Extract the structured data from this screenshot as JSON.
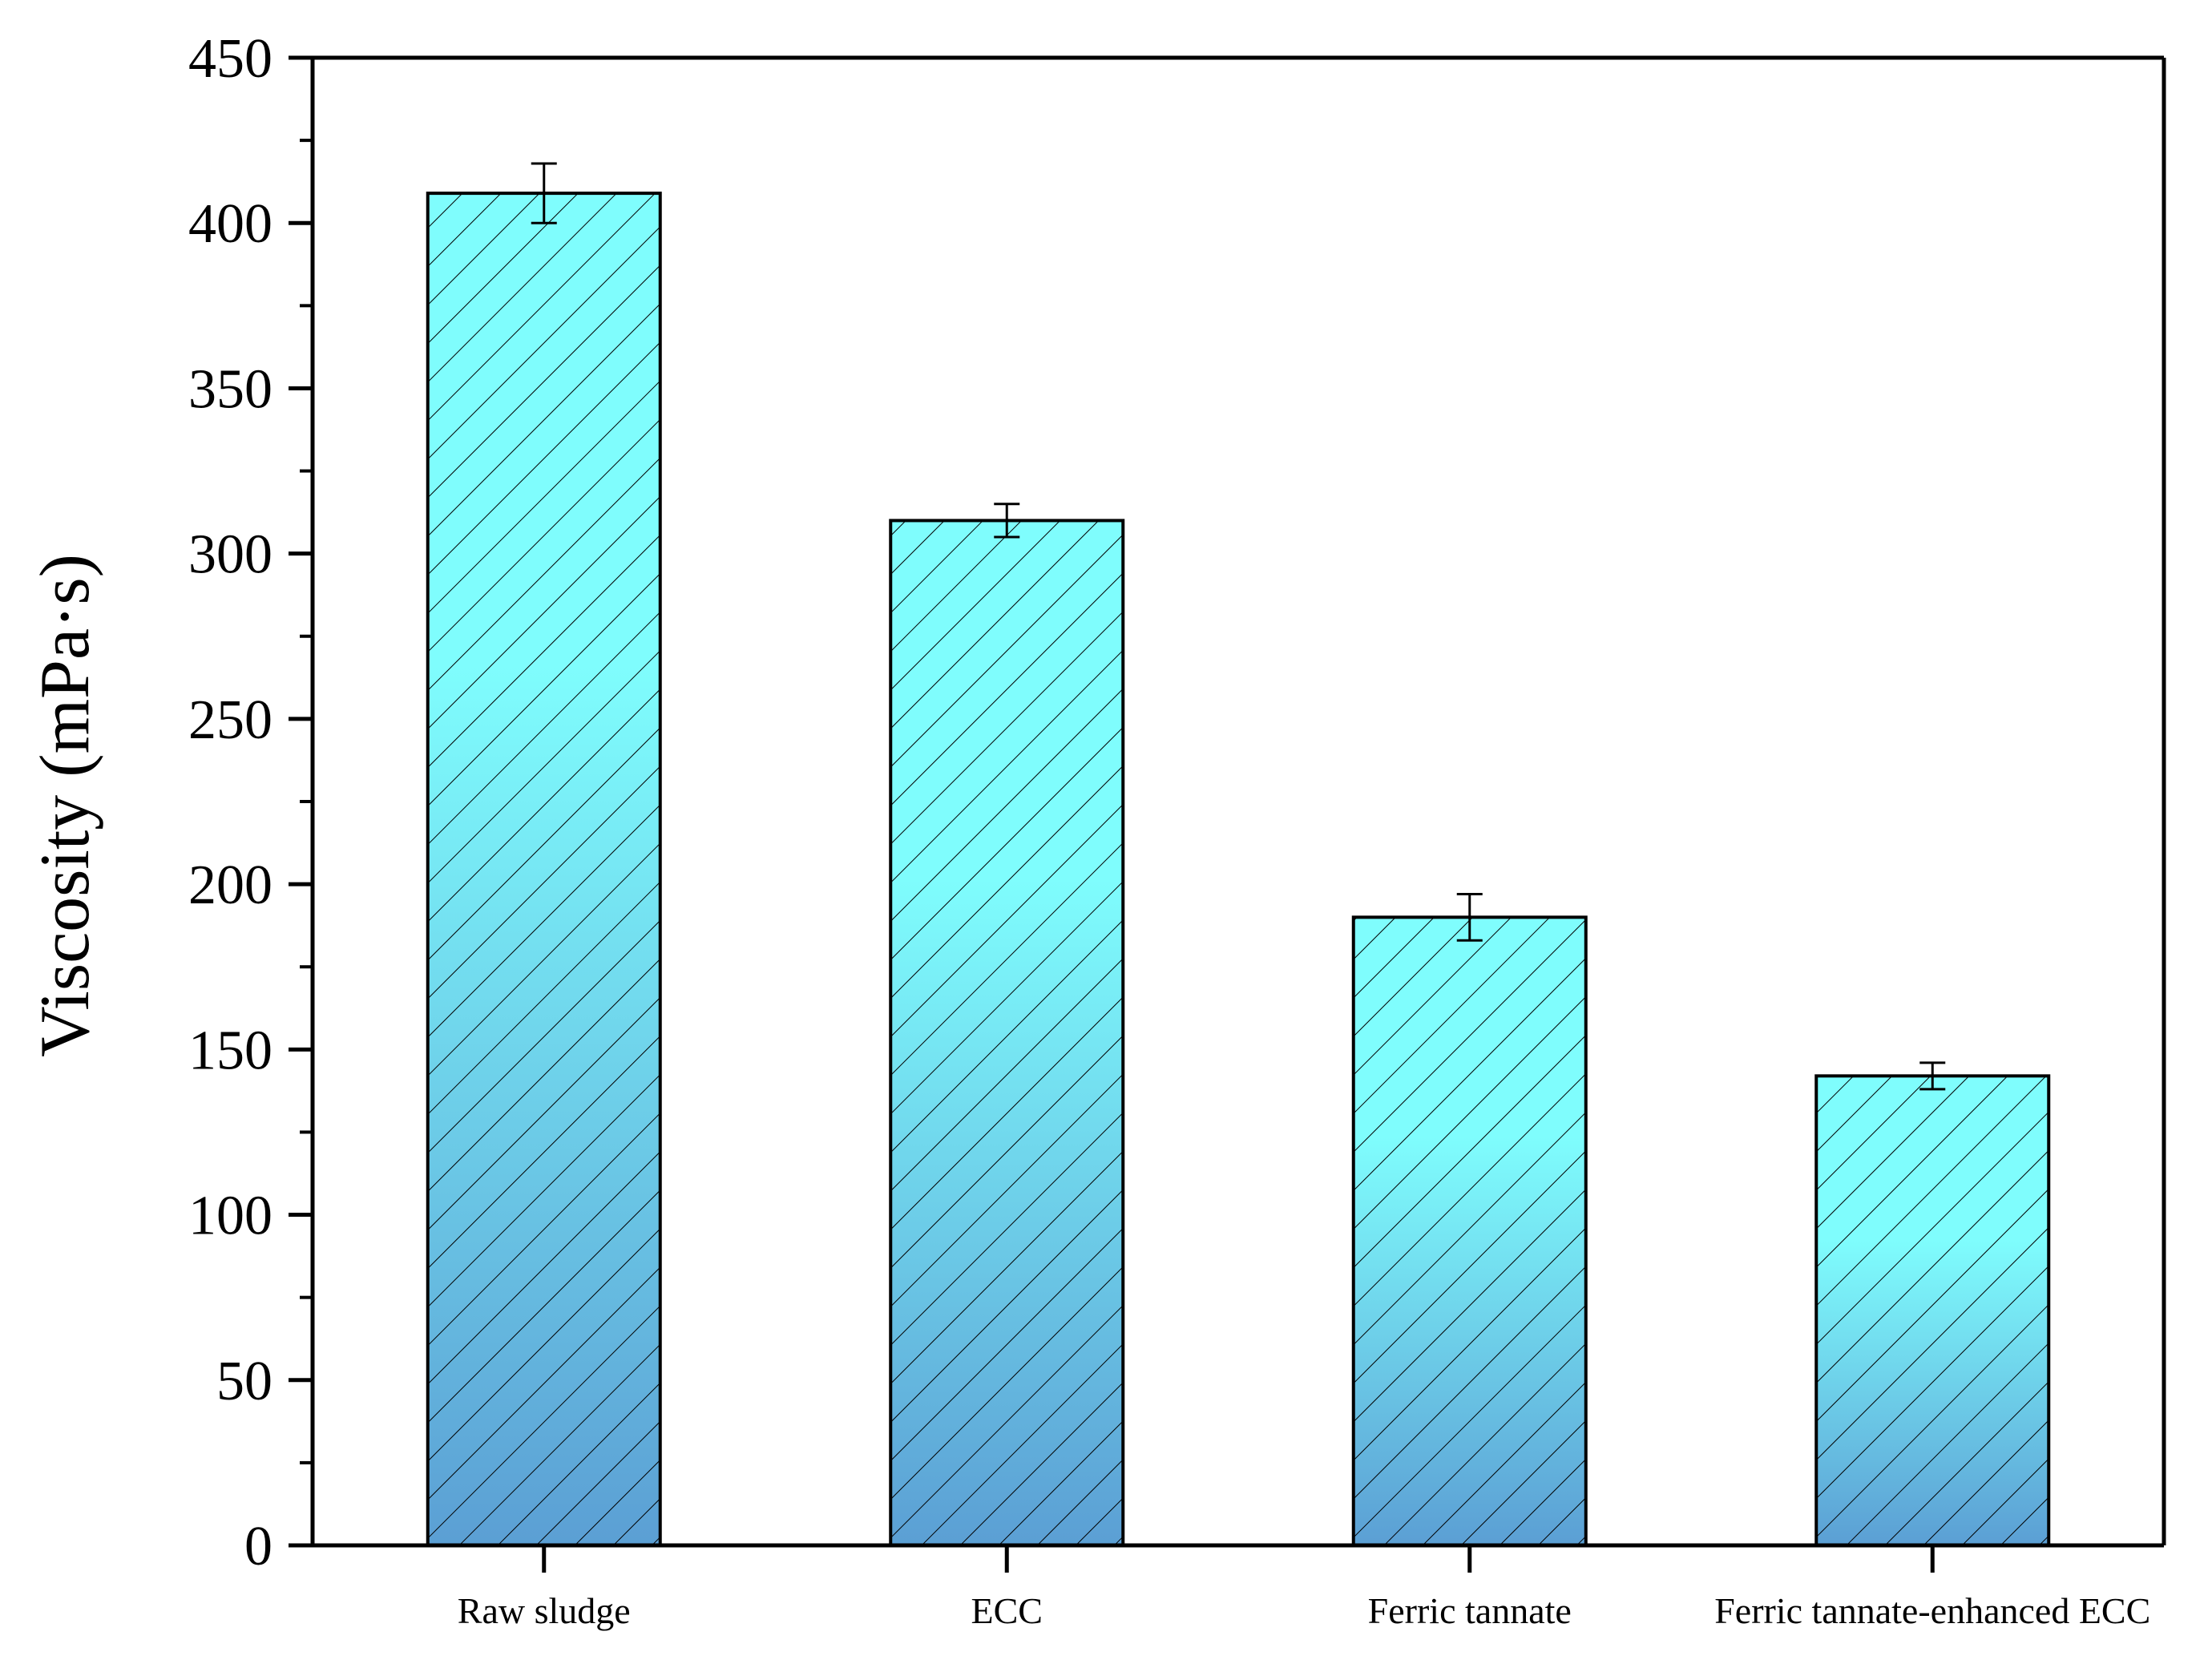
{
  "chart_data": {
    "type": "bar",
    "title": "",
    "xlabel": "",
    "ylabel": "Viscosity (mPa·s)",
    "ylim": [
      0,
      450
    ],
    "yticks": [
      0,
      50,
      100,
      150,
      200,
      250,
      300,
      350,
      400,
      450
    ],
    "categories": [
      "Raw sludge",
      "ECC",
      "Ferric tannate",
      "Ferric tannate-enhanced ECC"
    ],
    "values": [
      409,
      310,
      190,
      142
    ],
    "errors": [
      9,
      5,
      7,
      4
    ],
    "grid": false,
    "legend": "none",
    "colors": {
      "bar_top": "#7ffdfd",
      "bar_bottom": "#5b9fd4",
      "hatch": "#000000",
      "axis": "#000000"
    }
  }
}
